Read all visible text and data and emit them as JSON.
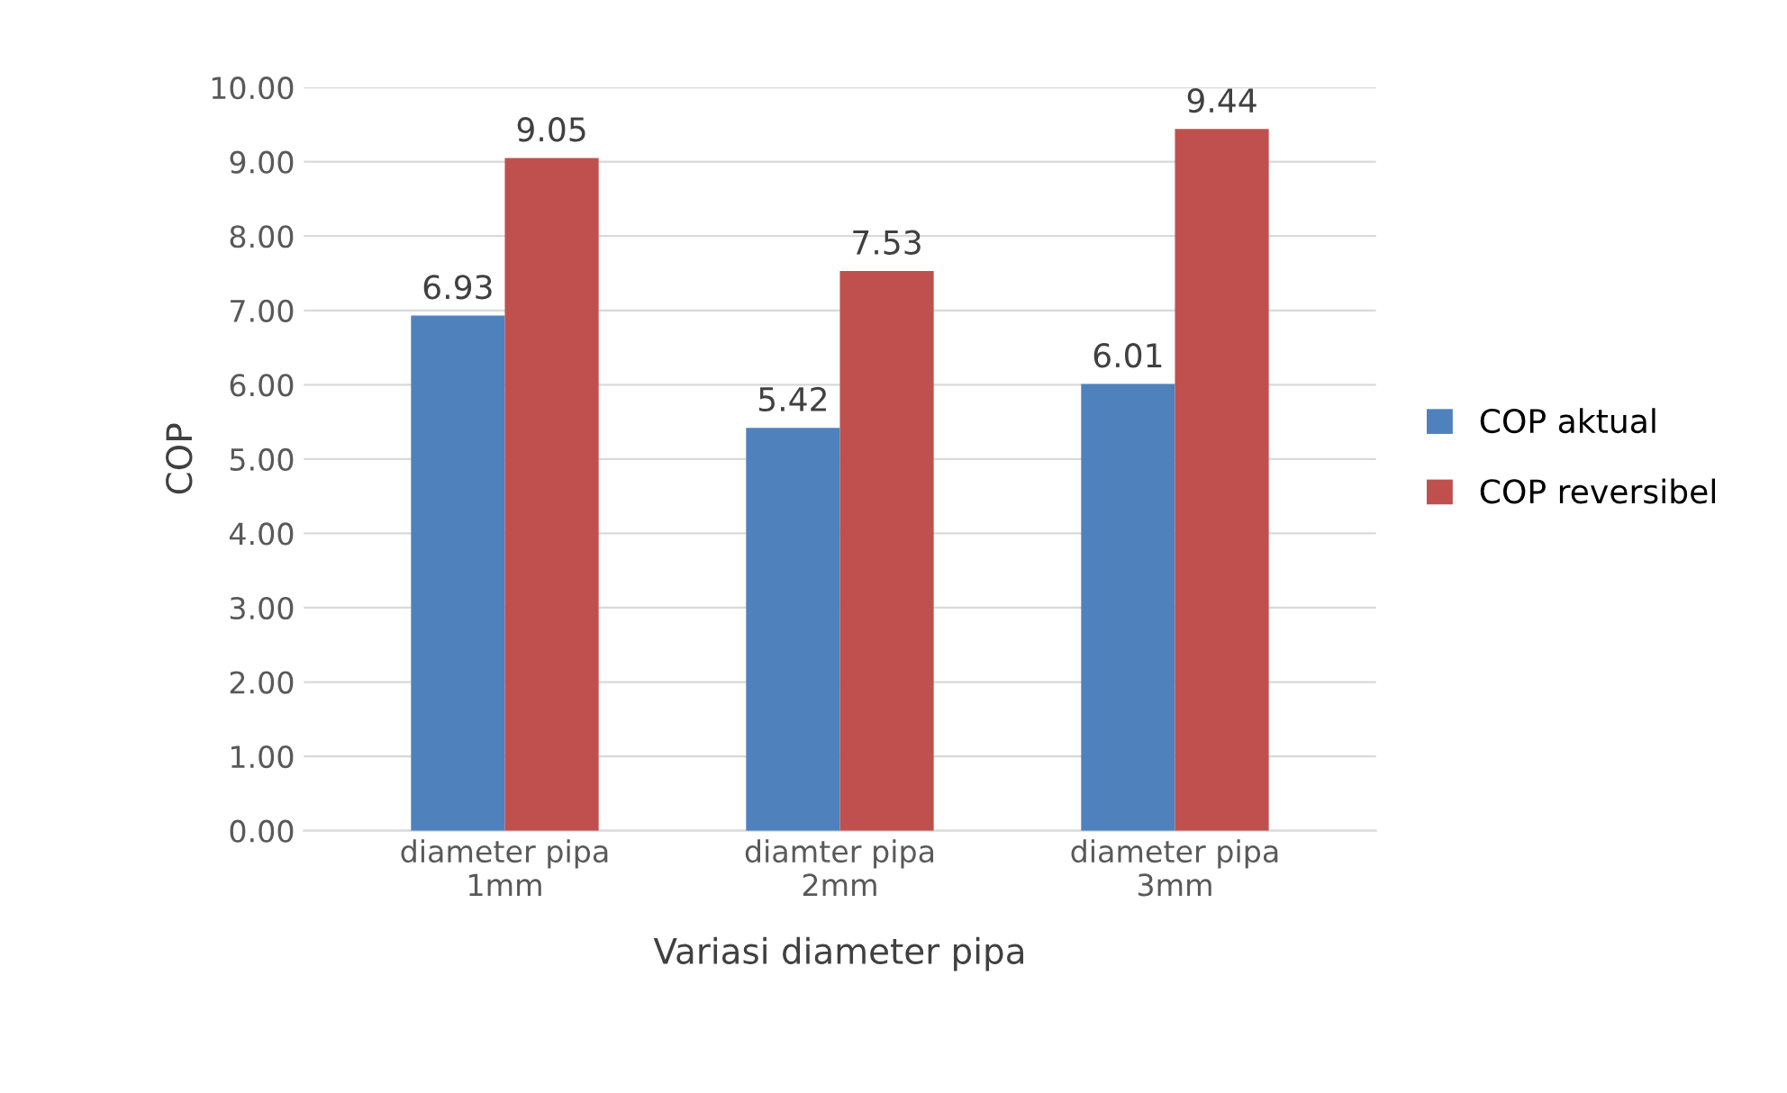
{
  "chart_data": {
    "type": "bar",
    "xlabel": "Variasi diameter pipa",
    "ylabel": "COP",
    "categories": [
      "diameter pipa\n1mm",
      "diamter pipa\n2mm",
      "diameter pipa\n3mm"
    ],
    "series": [
      {
        "name": "COP aktual",
        "color": "#4f81bd",
        "values": [
          6.93,
          5.42,
          6.01
        ]
      },
      {
        "name": "COP reversibel",
        "color": "#c0504d",
        "values": [
          9.05,
          7.53,
          9.44
        ]
      }
    ],
    "ylim": [
      0,
      10
    ],
    "yticks": [
      {
        "value": 0,
        "label": "0.00"
      },
      {
        "value": 1,
        "label": "1.00"
      },
      {
        "value": 2,
        "label": "2.00"
      },
      {
        "value": 3,
        "label": "3.00"
      },
      {
        "value": 4,
        "label": "4.00"
      },
      {
        "value": 5,
        "label": "5.00"
      },
      {
        "value": 6,
        "label": "6.00"
      },
      {
        "value": 7,
        "label": "7.00"
      },
      {
        "value": 8,
        "label": "8.00"
      },
      {
        "value": 9,
        "label": "9.00"
      },
      {
        "value": 10,
        "label": "10.00"
      }
    ],
    "grid": "y",
    "legend": "right",
    "data_labels": true
  }
}
